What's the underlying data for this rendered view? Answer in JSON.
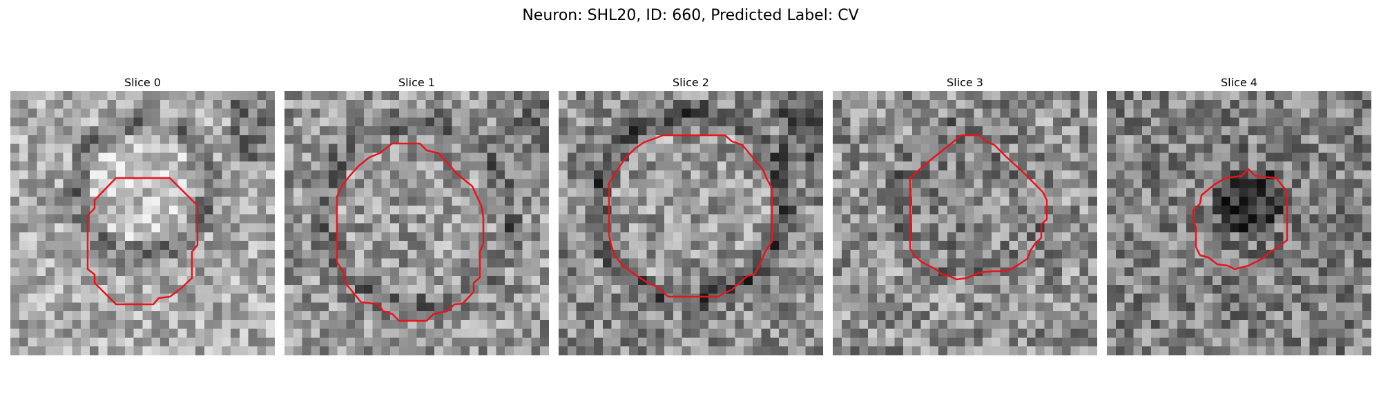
{
  "figure": {
    "title": "Neuron: SHL20, ID: 660, Predicted Label: CV"
  },
  "panels": [
    {
      "title": "Slice 0"
    },
    {
      "title": "Slice 1"
    },
    {
      "title": "Slice 2"
    },
    {
      "title": "Slice 3"
    },
    {
      "title": "Slice 4"
    }
  ],
  "outline_color": "#e8141c",
  "colormap": "grayscale"
}
